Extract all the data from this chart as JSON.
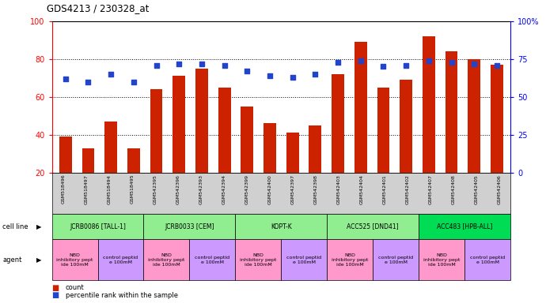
{
  "title": "GDS4213 / 230328_at",
  "samples": [
    "GSM518496",
    "GSM518497",
    "GSM518494",
    "GSM518495",
    "GSM542395",
    "GSM542396",
    "GSM542393",
    "GSM542394",
    "GSM542399",
    "GSM542400",
    "GSM542397",
    "GSM542398",
    "GSM542403",
    "GSM542404",
    "GSM542401",
    "GSM542402",
    "GSM542407",
    "GSM542408",
    "GSM542405",
    "GSM542406"
  ],
  "counts": [
    39,
    33,
    47,
    33,
    64,
    71,
    75,
    65,
    55,
    46,
    41,
    45,
    72,
    89,
    65,
    69,
    92,
    84,
    80,
    77
  ],
  "percentiles": [
    62,
    60,
    65,
    60,
    71,
    72,
    72,
    71,
    67,
    64,
    63,
    65,
    73,
    74,
    70,
    71,
    74,
    73,
    72,
    71
  ],
  "cell_lines": [
    {
      "label": "JCRB0086 [TALL-1]",
      "start": 0,
      "end": 4,
      "color": "#90ee90"
    },
    {
      "label": "JCRB0033 [CEM]",
      "start": 4,
      "end": 8,
      "color": "#90ee90"
    },
    {
      "label": "KOPT-K",
      "start": 8,
      "end": 12,
      "color": "#90ee90"
    },
    {
      "label": "ACC525 [DND41]",
      "start": 12,
      "end": 16,
      "color": "#90ee90"
    },
    {
      "label": "ACC483 [HPB-ALL]",
      "start": 16,
      "end": 20,
      "color": "#00dd55"
    }
  ],
  "agents": [
    {
      "label": "NBD\ninhibitory pept\nide 100mM",
      "start": 0,
      "end": 2,
      "color": "#ff99cc"
    },
    {
      "label": "control peptid\ne 100mM",
      "start": 2,
      "end": 4,
      "color": "#cc99ff"
    },
    {
      "label": "NBD\ninhibitory pept\nide 100mM",
      "start": 4,
      "end": 6,
      "color": "#ff99cc"
    },
    {
      "label": "control peptid\ne 100mM",
      "start": 6,
      "end": 8,
      "color": "#cc99ff"
    },
    {
      "label": "NBD\ninhibitory pept\nide 100mM",
      "start": 8,
      "end": 10,
      "color": "#ff99cc"
    },
    {
      "label": "control peptid\ne 100mM",
      "start": 10,
      "end": 12,
      "color": "#cc99ff"
    },
    {
      "label": "NBD\ninhibitory pept\nide 100mM",
      "start": 12,
      "end": 14,
      "color": "#ff99cc"
    },
    {
      "label": "control peptid\ne 100mM",
      "start": 14,
      "end": 16,
      "color": "#cc99ff"
    },
    {
      "label": "NBD\ninhibitory pept\nide 100mM",
      "start": 16,
      "end": 18,
      "color": "#ff99cc"
    },
    {
      "label": "control peptid\ne 100mM",
      "start": 18,
      "end": 20,
      "color": "#cc99ff"
    }
  ],
  "bar_color": "#cc2200",
  "dot_color": "#2244cc",
  "ylim_left": [
    20,
    100
  ],
  "ylim_right": [
    0,
    100
  ],
  "yticks_left": [
    20,
    40,
    60,
    80,
    100
  ],
  "yticks_right": [
    0,
    25,
    50,
    75,
    100
  ],
  "ytick_labels_right": [
    "0",
    "25",
    "50",
    "75",
    "100%"
  ],
  "background_color": "#ffffff"
}
